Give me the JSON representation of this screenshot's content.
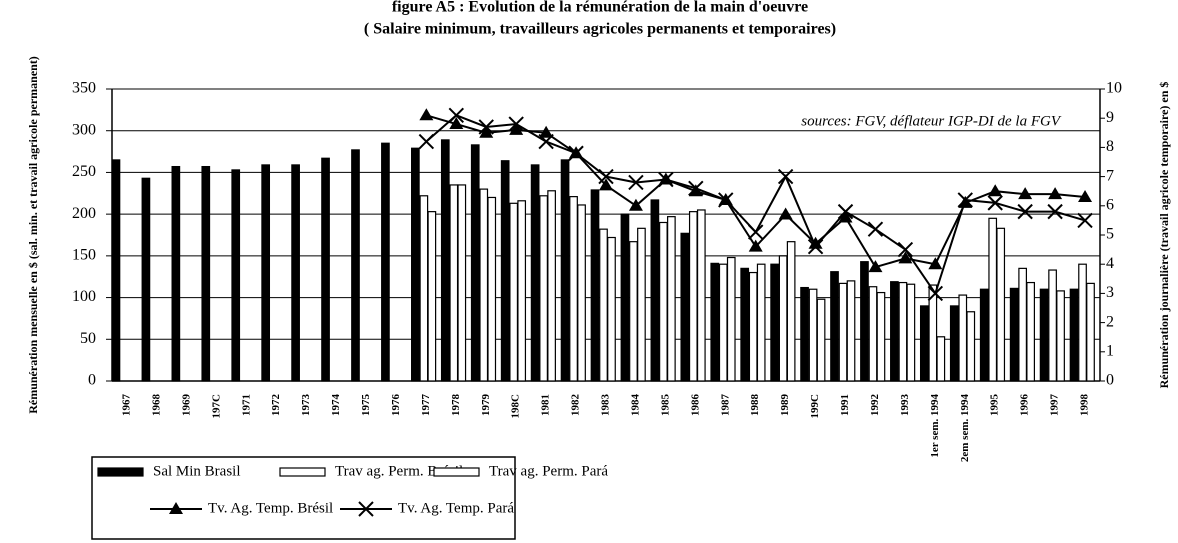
{
  "chart_data": {
    "type": "bar",
    "title": "figure A5 : Evolution de la rémunération de la main d'oeuvre",
    "subtitle": "( Salaire minimum, travailleurs agricoles permanents et temporaires)",
    "y_label": "Rémunération mensuelle en $ (sal. min. et travail agricole permanent)",
    "y2_label": "Rémunération journalière (travail agricole temporaire) en $",
    "annotation": "sources: FGV, déflateur IGP-DI de la FGV",
    "categories": [
      "1967",
      "1968",
      "1969",
      "197C",
      "1971",
      "1972",
      "1973",
      "1974",
      "1975",
      "1976",
      "1977",
      "1978",
      "1979",
      "198C",
      "1981",
      "1982",
      "1983",
      "1984",
      "1985",
      "1986",
      "1987",
      "1988",
      "1989",
      "199C",
      "1991",
      "1992",
      "1993",
      "1er sem. 1994",
      "2em sem. 1994",
      "1995",
      "1996",
      "1997",
      "1998"
    ],
    "series": [
      {
        "name": "Sal Min Brasil",
        "type": "bar",
        "color": "#000000",
        "values": [
          265,
          243,
          257,
          257,
          253,
          259,
          259,
          267,
          277,
          285,
          279,
          289,
          283,
          264,
          259,
          265,
          229,
          200,
          217,
          177,
          141,
          135,
          140,
          112,
          131,
          143,
          119,
          90,
          90,
          110,
          111,
          110,
          110
        ]
      },
      {
        "name": "Trav ag. Perm. Brésil",
        "type": "bar",
        "color": "#ffffff",
        "values": [
          null,
          null,
          null,
          null,
          null,
          null,
          null,
          null,
          null,
          null,
          222,
          235,
          230,
          213,
          222,
          221,
          182,
          167,
          190,
          203,
          140,
          130,
          150,
          110,
          117,
          113,
          118,
          115,
          103,
          195,
          135,
          133,
          140
        ]
      },
      {
        "name": "Trav ag. Perm. Pará",
        "type": "bar",
        "color": "#ffffff",
        "values": [
          null,
          null,
          null,
          null,
          null,
          null,
          null,
          null,
          null,
          null,
          203,
          235,
          220,
          216,
          228,
          211,
          172,
          183,
          197,
          205,
          148,
          140,
          167,
          98,
          120,
          106,
          116,
          53,
          83,
          183,
          118,
          108,
          117
        ]
      },
      {
        "name": "Tv. Ag. Temp. Brésil",
        "type": "line",
        "marker": "triangle",
        "axis": "y2",
        "color": "#000000",
        "values": [
          null,
          null,
          null,
          null,
          null,
          null,
          null,
          null,
          null,
          null,
          9.1,
          8.8,
          8.5,
          8.6,
          8.5,
          7.8,
          6.7,
          6.0,
          6.9,
          6.5,
          6.2,
          4.6,
          5.7,
          4.7,
          5.6,
          3.9,
          4.2,
          4.0,
          6.1,
          6.5,
          6.4,
          6.4,
          6.3
        ]
      },
      {
        "name": "Tv. Ag. Temp. Pará",
        "type": "line",
        "marker": "x",
        "axis": "y2",
        "color": "#000000",
        "values": [
          null,
          null,
          null,
          null,
          null,
          null,
          null,
          null,
          null,
          null,
          8.2,
          9.1,
          8.7,
          8.8,
          8.2,
          7.8,
          7.0,
          6.8,
          6.9,
          6.6,
          6.2,
          5.1,
          7.0,
          4.6,
          5.8,
          5.2,
          4.5,
          3.0,
          6.2,
          6.1,
          5.8,
          5.8,
          5.5
        ]
      }
    ],
    "ylim": [
      0,
      350
    ],
    "yticks": [
      0,
      50,
      100,
      150,
      200,
      250,
      300,
      350
    ],
    "y2lim": [
      0,
      10
    ],
    "y2ticks": [
      0,
      1,
      2,
      3,
      4,
      5,
      6,
      7,
      8,
      9,
      10
    ],
    "grid": true
  }
}
